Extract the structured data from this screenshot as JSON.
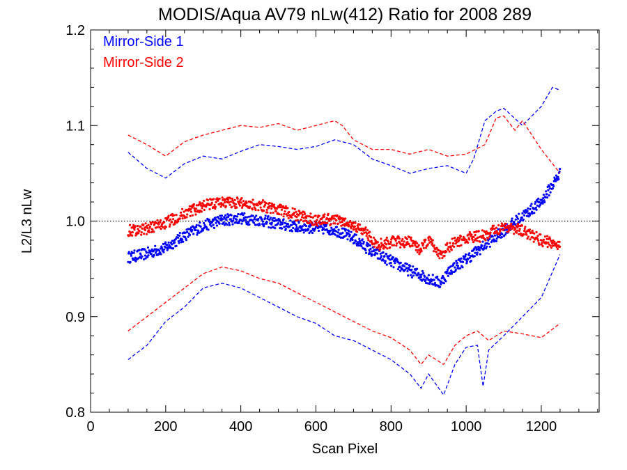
{
  "chart_data": {
    "type": "scatter",
    "title": "MODIS/Aqua AV79 nLw(412) Ratio for 2008 289",
    "xlabel": "Scan Pixel",
    "ylabel": "L2/L3 nLw",
    "xlim": [
      0,
      1354
    ],
    "ylim": [
      0.8,
      1.2
    ],
    "xticks": [
      0,
      200,
      400,
      600,
      800,
      1000,
      1200
    ],
    "xtick_labels": [
      "0",
      "200",
      "400",
      "600",
      "800",
      "1000",
      "1200"
    ],
    "yticks": [
      0.8,
      0.9,
      1.0,
      1.1,
      1.2
    ],
    "ytick_labels": [
      "0.8",
      "0.9",
      "1.0",
      "1.1",
      "1.2"
    ],
    "reference_line": 1.0,
    "legend_position": "top-left",
    "series": [
      {
        "name": "Mirror-Side 1",
        "color": "#0000ff",
        "mean": {
          "x": [
            100,
            150,
            200,
            250,
            300,
            350,
            400,
            450,
            500,
            550,
            600,
            650,
            700,
            750,
            800,
            850,
            900,
            930,
            960,
            1000,
            1050,
            1100,
            1150,
            1200,
            1250
          ],
          "y": [
            0.962,
            0.966,
            0.972,
            0.985,
            0.995,
            1.001,
            1.003,
            1.001,
            0.997,
            0.994,
            0.993,
            0.991,
            0.982,
            0.968,
            0.958,
            0.948,
            0.94,
            0.935,
            0.95,
            0.96,
            0.975,
            0.99,
            1.005,
            1.02,
            1.05
          ]
        },
        "upper": {
          "x": [
            100,
            150,
            200,
            250,
            300,
            350,
            400,
            450,
            500,
            550,
            600,
            650,
            700,
            750,
            800,
            850,
            900,
            950,
            1000,
            1020,
            1050,
            1080,
            1100,
            1150,
            1200,
            1230,
            1250
          ],
          "y": [
            1.072,
            1.055,
            1.045,
            1.06,
            1.068,
            1.065,
            1.073,
            1.08,
            1.078,
            1.075,
            1.078,
            1.085,
            1.08,
            1.065,
            1.058,
            1.05,
            1.055,
            1.058,
            1.05,
            1.065,
            1.105,
            1.115,
            1.118,
            1.1,
            1.12,
            1.14,
            1.137
          ]
        },
        "lower": {
          "x": [
            100,
            150,
            200,
            250,
            300,
            350,
            400,
            450,
            500,
            550,
            600,
            650,
            700,
            750,
            800,
            850,
            880,
            900,
            940,
            970,
            1000,
            1030,
            1045,
            1060,
            1100,
            1150,
            1200,
            1250
          ],
          "y": [
            0.855,
            0.87,
            0.895,
            0.91,
            0.93,
            0.935,
            0.93,
            0.92,
            0.91,
            0.9,
            0.893,
            0.88,
            0.875,
            0.865,
            0.855,
            0.84,
            0.825,
            0.84,
            0.818,
            0.85,
            0.868,
            0.87,
            0.827,
            0.865,
            0.88,
            0.9,
            0.92,
            0.965
          ]
        }
      },
      {
        "name": "Mirror-Side 2",
        "color": "#ff0000",
        "mean": {
          "x": [
            100,
            150,
            200,
            250,
            300,
            350,
            400,
            450,
            500,
            550,
            600,
            650,
            700,
            730,
            760,
            800,
            850,
            880,
            900,
            930,
            960,
            1000,
            1050,
            1100,
            1150,
            1200,
            1250
          ],
          "y": [
            0.99,
            0.992,
            0.998,
            1.008,
            1.016,
            1.02,
            1.019,
            1.017,
            1.012,
            1.006,
            1.001,
            1.002,
            0.995,
            0.99,
            0.975,
            0.978,
            0.978,
            0.97,
            0.98,
            0.965,
            0.975,
            0.982,
            0.985,
            0.995,
            0.99,
            0.98,
            0.975
          ]
        },
        "upper": {
          "x": [
            100,
            150,
            200,
            250,
            300,
            350,
            400,
            450,
            500,
            550,
            600,
            650,
            670,
            700,
            750,
            800,
            850,
            900,
            950,
            1000,
            1050,
            1080,
            1100,
            1130,
            1150,
            1200,
            1250
          ],
          "y": [
            1.09,
            1.08,
            1.068,
            1.083,
            1.09,
            1.095,
            1.1,
            1.098,
            1.102,
            1.095,
            1.1,
            1.105,
            1.1,
            1.085,
            1.075,
            1.075,
            1.07,
            1.075,
            1.068,
            1.07,
            1.08,
            1.108,
            1.11,
            1.095,
            1.105,
            1.075,
            1.05
          ]
        },
        "lower": {
          "x": [
            100,
            150,
            200,
            250,
            300,
            350,
            400,
            450,
            500,
            550,
            600,
            650,
            700,
            750,
            800,
            850,
            880,
            900,
            940,
            970,
            1000,
            1030,
            1060,
            1100,
            1150,
            1200,
            1250
          ],
          "y": [
            0.885,
            0.9,
            0.915,
            0.93,
            0.945,
            0.952,
            0.948,
            0.94,
            0.935,
            0.925,
            0.915,
            0.905,
            0.895,
            0.885,
            0.878,
            0.865,
            0.85,
            0.86,
            0.85,
            0.87,
            0.88,
            0.885,
            0.875,
            0.885,
            0.882,
            0.878,
            0.893
          ]
        }
      }
    ]
  }
}
